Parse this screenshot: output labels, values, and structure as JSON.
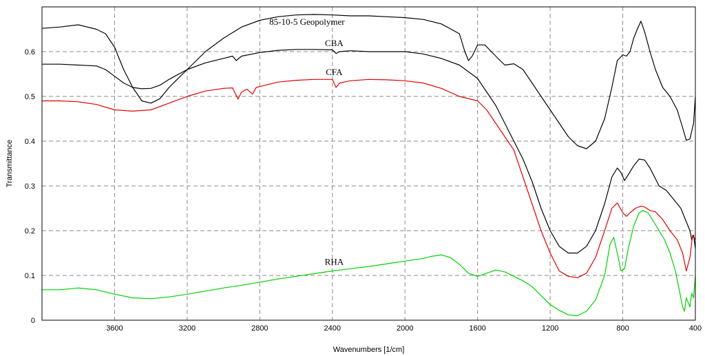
{
  "chart_data": {
    "type": "line",
    "xlabel": "Wavenumbers [1/cm]",
    "ylabel": "Transmittance",
    "xlim": [
      4000,
      400
    ],
    "ylim": [
      0,
      0.7
    ],
    "x_reversed": true,
    "grid": true,
    "x_ticks": [
      3600,
      3200,
      2800,
      2400,
      2000,
      1600,
      1200,
      800,
      400
    ],
    "y_ticks": [
      0,
      0.1,
      0.2,
      0.3,
      0.4,
      0.5,
      0.6
    ],
    "series": [
      {
        "name": "85-10-5 Geopolymer",
        "color": "#000000",
        "label_at": [
          2540,
          0.66
        ],
        "points": [
          [
            4000,
            0.652
          ],
          [
            3900,
            0.655
          ],
          [
            3800,
            0.66
          ],
          [
            3700,
            0.65
          ],
          [
            3650,
            0.64
          ],
          [
            3600,
            0.61
          ],
          [
            3550,
            0.56
          ],
          [
            3500,
            0.52
          ],
          [
            3450,
            0.49
          ],
          [
            3400,
            0.485
          ],
          [
            3350,
            0.495
          ],
          [
            3300,
            0.52
          ],
          [
            3200,
            0.56
          ],
          [
            3100,
            0.6
          ],
          [
            3000,
            0.63
          ],
          [
            2900,
            0.655
          ],
          [
            2800,
            0.67
          ],
          [
            2700,
            0.678
          ],
          [
            2600,
            0.682
          ],
          [
            2500,
            0.683
          ],
          [
            2400,
            0.682
          ],
          [
            2300,
            0.68
          ],
          [
            2200,
            0.68
          ],
          [
            2100,
            0.678
          ],
          [
            2000,
            0.676
          ],
          [
            1900,
            0.672
          ],
          [
            1800,
            0.662
          ],
          [
            1700,
            0.64
          ],
          [
            1670,
            0.6
          ],
          [
            1650,
            0.58
          ],
          [
            1630,
            0.59
          ],
          [
            1600,
            0.615
          ],
          [
            1560,
            0.615
          ],
          [
            1500,
            0.59
          ],
          [
            1450,
            0.57
          ],
          [
            1400,
            0.573
          ],
          [
            1350,
            0.56
          ],
          [
            1300,
            0.53
          ],
          [
            1250,
            0.5
          ],
          [
            1200,
            0.47
          ],
          [
            1150,
            0.44
          ],
          [
            1100,
            0.41
          ],
          [
            1050,
            0.39
          ],
          [
            1000,
            0.383
          ],
          [
            950,
            0.4
          ],
          [
            900,
            0.45
          ],
          [
            860,
            0.52
          ],
          [
            830,
            0.58
          ],
          [
            800,
            0.593
          ],
          [
            780,
            0.59
          ],
          [
            760,
            0.6
          ],
          [
            740,
            0.63
          ],
          [
            720,
            0.65
          ],
          [
            700,
            0.668
          ],
          [
            680,
            0.645
          ],
          [
            650,
            0.6
          ],
          [
            620,
            0.56
          ],
          [
            580,
            0.52
          ],
          [
            540,
            0.5
          ],
          [
            500,
            0.47
          ],
          [
            470,
            0.43
          ],
          [
            450,
            0.402
          ],
          [
            430,
            0.405
          ],
          [
            410,
            0.44
          ],
          [
            400,
            0.5
          ]
        ]
      },
      {
        "name": "CBA",
        "color": "#000000",
        "label_at": [
          2390,
          0.612
        ],
        "points": [
          [
            4000,
            0.572
          ],
          [
            3900,
            0.572
          ],
          [
            3800,
            0.57
          ],
          [
            3700,
            0.568
          ],
          [
            3650,
            0.56
          ],
          [
            3600,
            0.545
          ],
          [
            3550,
            0.53
          ],
          [
            3500,
            0.52
          ],
          [
            3450,
            0.517
          ],
          [
            3400,
            0.518
          ],
          [
            3350,
            0.525
          ],
          [
            3300,
            0.538
          ],
          [
            3200,
            0.56
          ],
          [
            3100,
            0.575
          ],
          [
            3000,
            0.585
          ],
          [
            2950,
            0.59
          ],
          [
            2930,
            0.58
          ],
          [
            2900,
            0.59
          ],
          [
            2800,
            0.598
          ],
          [
            2700,
            0.603
          ],
          [
            2600,
            0.605
          ],
          [
            2500,
            0.605
          ],
          [
            2400,
            0.604
          ],
          [
            2380,
            0.596
          ],
          [
            2360,
            0.6
          ],
          [
            2300,
            0.602
          ],
          [
            2200,
            0.6
          ],
          [
            2100,
            0.6
          ],
          [
            2000,
            0.6
          ],
          [
            1900,
            0.595
          ],
          [
            1800,
            0.585
          ],
          [
            1700,
            0.57
          ],
          [
            1600,
            0.54
          ],
          [
            1550,
            0.51
          ],
          [
            1500,
            0.48
          ],
          [
            1450,
            0.44
          ],
          [
            1400,
            0.4
          ],
          [
            1350,
            0.36
          ],
          [
            1300,
            0.31
          ],
          [
            1250,
            0.25
          ],
          [
            1200,
            0.2
          ],
          [
            1150,
            0.165
          ],
          [
            1100,
            0.15
          ],
          [
            1050,
            0.15
          ],
          [
            1000,
            0.165
          ],
          [
            950,
            0.2
          ],
          [
            900,
            0.26
          ],
          [
            860,
            0.32
          ],
          [
            830,
            0.34
          ],
          [
            810,
            0.33
          ],
          [
            790,
            0.312
          ],
          [
            770,
            0.325
          ],
          [
            740,
            0.345
          ],
          [
            710,
            0.36
          ],
          [
            680,
            0.358
          ],
          [
            650,
            0.34
          ],
          [
            600,
            0.3
          ],
          [
            560,
            0.29
          ],
          [
            520,
            0.27
          ],
          [
            480,
            0.25
          ],
          [
            450,
            0.22
          ],
          [
            430,
            0.2
          ],
          [
            420,
            0.18
          ],
          [
            410,
            0.19
          ],
          [
            400,
            0.16
          ]
        ]
      },
      {
        "name": "CFA",
        "color": "#e00000",
        "label_at": [
          2390,
          0.548
        ],
        "points": [
          [
            4000,
            0.49
          ],
          [
            3900,
            0.49
          ],
          [
            3800,
            0.488
          ],
          [
            3700,
            0.482
          ],
          [
            3600,
            0.47
          ],
          [
            3500,
            0.467
          ],
          [
            3400,
            0.47
          ],
          [
            3300,
            0.485
          ],
          [
            3200,
            0.5
          ],
          [
            3100,
            0.512
          ],
          [
            3000,
            0.518
          ],
          [
            2950,
            0.519
          ],
          [
            2920,
            0.494
          ],
          [
            2900,
            0.51
          ],
          [
            2870,
            0.516
          ],
          [
            2840,
            0.505
          ],
          [
            2820,
            0.52
          ],
          [
            2700,
            0.532
          ],
          [
            2600,
            0.536
          ],
          [
            2500,
            0.538
          ],
          [
            2400,
            0.538
          ],
          [
            2380,
            0.52
          ],
          [
            2360,
            0.53
          ],
          [
            2300,
            0.535
          ],
          [
            2200,
            0.538
          ],
          [
            2100,
            0.537
          ],
          [
            2000,
            0.535
          ],
          [
            1900,
            0.53
          ],
          [
            1800,
            0.518
          ],
          [
            1700,
            0.5
          ],
          [
            1600,
            0.49
          ],
          [
            1550,
            0.47
          ],
          [
            1500,
            0.44
          ],
          [
            1450,
            0.41
          ],
          [
            1400,
            0.38
          ],
          [
            1350,
            0.32
          ],
          [
            1300,
            0.26
          ],
          [
            1250,
            0.2
          ],
          [
            1200,
            0.15
          ],
          [
            1150,
            0.11
          ],
          [
            1100,
            0.098
          ],
          [
            1050,
            0.095
          ],
          [
            1000,
            0.105
          ],
          [
            950,
            0.14
          ],
          [
            900,
            0.2
          ],
          [
            860,
            0.25
          ],
          [
            830,
            0.262
          ],
          [
            800,
            0.24
          ],
          [
            780,
            0.232
          ],
          [
            760,
            0.24
          ],
          [
            730,
            0.25
          ],
          [
            700,
            0.255
          ],
          [
            680,
            0.253
          ],
          [
            650,
            0.245
          ],
          [
            620,
            0.242
          ],
          [
            580,
            0.225
          ],
          [
            540,
            0.2
          ],
          [
            500,
            0.18
          ],
          [
            470,
            0.15
          ],
          [
            450,
            0.11
          ],
          [
            430,
            0.14
          ],
          [
            415,
            0.19
          ],
          [
            400,
            0.18
          ]
        ]
      },
      {
        "name": "RHA",
        "color": "#00d000",
        "label_at": [
          2390,
          0.124
        ],
        "points": [
          [
            4000,
            0.068
          ],
          [
            3900,
            0.068
          ],
          [
            3800,
            0.072
          ],
          [
            3700,
            0.068
          ],
          [
            3600,
            0.058
          ],
          [
            3500,
            0.05
          ],
          [
            3400,
            0.048
          ],
          [
            3300,
            0.052
          ],
          [
            3200,
            0.058
          ],
          [
            3100,
            0.065
          ],
          [
            3000,
            0.072
          ],
          [
            2900,
            0.078
          ],
          [
            2800,
            0.085
          ],
          [
            2700,
            0.092
          ],
          [
            2600,
            0.098
          ],
          [
            2500,
            0.104
          ],
          [
            2400,
            0.11
          ],
          [
            2300,
            0.115
          ],
          [
            2200,
            0.12
          ],
          [
            2100,
            0.126
          ],
          [
            2000,
            0.132
          ],
          [
            1900,
            0.138
          ],
          [
            1850,
            0.143
          ],
          [
            1800,
            0.146
          ],
          [
            1750,
            0.14
          ],
          [
            1700,
            0.125
          ],
          [
            1650,
            0.105
          ],
          [
            1600,
            0.098
          ],
          [
            1550,
            0.105
          ],
          [
            1500,
            0.112
          ],
          [
            1450,
            0.108
          ],
          [
            1400,
            0.098
          ],
          [
            1350,
            0.088
          ],
          [
            1300,
            0.075
          ],
          [
            1250,
            0.055
          ],
          [
            1200,
            0.035
          ],
          [
            1150,
            0.022
          ],
          [
            1100,
            0.012
          ],
          [
            1050,
            0.01
          ],
          [
            1000,
            0.02
          ],
          [
            950,
            0.045
          ],
          [
            900,
            0.1
          ],
          [
            870,
            0.17
          ],
          [
            850,
            0.185
          ],
          [
            830,
            0.15
          ],
          [
            810,
            0.11
          ],
          [
            790,
            0.115
          ],
          [
            770,
            0.16
          ],
          [
            740,
            0.21
          ],
          [
            710,
            0.24
          ],
          [
            690,
            0.245
          ],
          [
            660,
            0.24
          ],
          [
            630,
            0.22
          ],
          [
            600,
            0.2
          ],
          [
            570,
            0.18
          ],
          [
            540,
            0.15
          ],
          [
            510,
            0.11
          ],
          [
            490,
            0.07
          ],
          [
            470,
            0.03
          ],
          [
            460,
            0.02
          ],
          [
            450,
            0.05
          ],
          [
            440,
            0.04
          ],
          [
            430,
            0.03
          ],
          [
            420,
            0.06
          ],
          [
            410,
            0.05
          ],
          [
            400,
            0.1
          ]
        ]
      }
    ]
  }
}
